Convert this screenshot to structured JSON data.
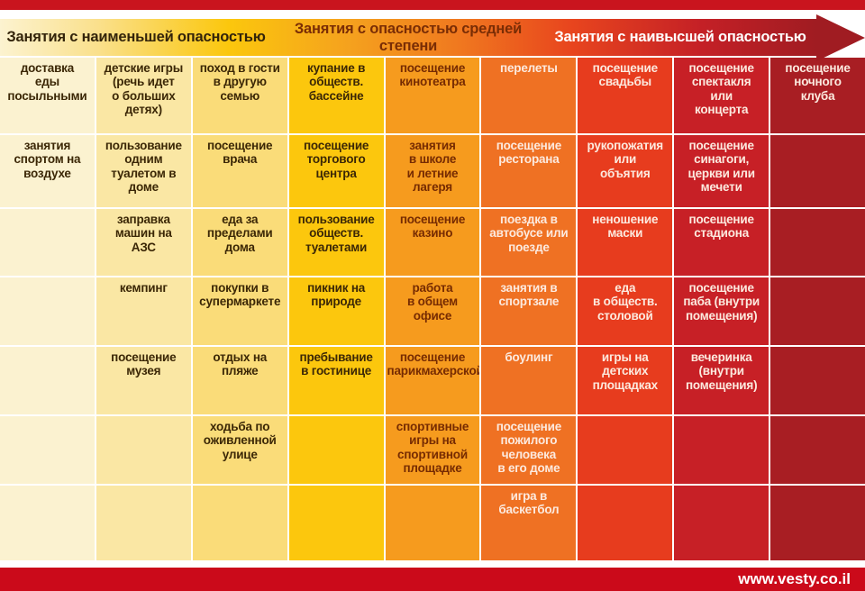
{
  "header": {
    "label_colors": [
      "#33240A",
      "#7A2D05",
      "#FFFFFF"
    ],
    "arrow_color": "#A01C22"
  },
  "chart_data": {
    "type": "table",
    "title_bands": [
      "Занятия с наименьшей опасностью",
      "Занятия с опасностью средней степени",
      "Занятия с наивысшей опасностью"
    ],
    "risk_scale_note": "columns left (lowest risk) to right (highest risk)",
    "columns": [
      {
        "risk_level": 1,
        "bg": "#FBF2D0",
        "text_color": "#3B2706"
      },
      {
        "risk_level": 2,
        "bg": "#FAE7A4",
        "text_color": "#3B2706"
      },
      {
        "risk_level": 3,
        "bg": "#FADC79",
        "text_color": "#3B2706"
      },
      {
        "risk_level": 4,
        "bg": "#FCC70D",
        "text_color": "#3B2706"
      },
      {
        "risk_level": 5,
        "bg": "#F69B1E",
        "text_color": "#762B02"
      },
      {
        "risk_level": 6,
        "bg": "#EF7123",
        "text_color": "#FCEADF"
      },
      {
        "risk_level": 7,
        "bg": "#E73C1E",
        "text_color": "#FCEADF"
      },
      {
        "risk_level": 8,
        "bg": "#C72026",
        "text_color": "#FCEADF"
      },
      {
        "risk_level": 9,
        "bg": "#A81E23",
        "text_color": "#FCEADF"
      }
    ],
    "rows": [
      [
        "доставка\nеды\nпосыльными",
        "детские игры\n(речь идет\nо больших\nдетях)",
        "поход в гости\nв другую\nсемью",
        "купание в\nобществ.\nбассейне",
        "посещение\nкинотеатра",
        "перелеты",
        "посещение\nсвадьбы",
        "посещение\nспектакля\nили\nконцерта",
        "посещение\nночного\nклуба"
      ],
      [
        "занятия\nспортом на\nвоздухе",
        "пользование\nодним\nтуалетом в\nдоме",
        "посещение\nврача",
        "посещение\nторгового\nцентра",
        "занятия\nв школе\nи летние\nлагеря",
        "посещение\nресторана",
        "рукопожатия\nили\nобъятия",
        "посещение\nсинагоги,\nцеркви или\nмечети",
        ""
      ],
      [
        "",
        "заправка\nмашин на\nАЗС",
        "еда за\nпределами\nдома",
        "пользование\nобществ.\nтуалетами",
        "посещение\nказино",
        "поездка в\nавтобусе или\nпоезде",
        "неношение\nмаски",
        "посещение\nстадиона",
        ""
      ],
      [
        "",
        "кемпинг",
        "покупки в\nсупермаркете",
        "пикник на\nприроде",
        "работа\nв общем\nофисе",
        "занятия в\nспортзале",
        "еда\nв обществ.\nстоловой",
        "посещение\nпаба (внутри\nпомещения)",
        ""
      ],
      [
        "",
        "посещение\nмузея",
        "отдых на\nпляже",
        "пребывание\nв гостинице",
        "посещение\nпарикмахерской",
        "боулинг",
        "игры на\nдетских\nплощадках",
        "вечеринка\n(внутри\nпомещения)",
        ""
      ],
      [
        "",
        "",
        "ходьба по\nоживленной\nулице",
        "",
        "спортивные\nигры на\nспортивной\nплощадке",
        "посещение\nпожилого\nчеловека\nв его доме",
        "",
        "",
        ""
      ],
      [
        "",
        "",
        "",
        "",
        "",
        "игра в\nбаскетбол",
        "",
        "",
        ""
      ]
    ]
  },
  "footer": {
    "url": "www.vesty.co.il",
    "bar_color": "#CB0A1A",
    "text_color": "#FFFFFF"
  },
  "top_bar_color": "#C9141E"
}
